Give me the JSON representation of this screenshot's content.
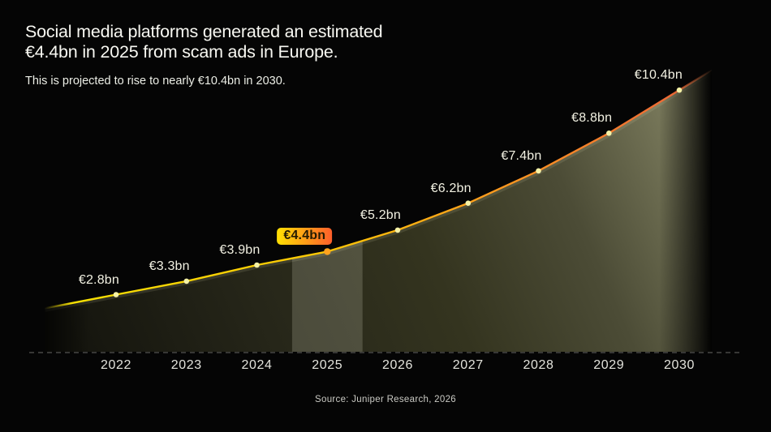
{
  "header": {
    "title_line1": "Social media platforms generated an estimated",
    "title_line2": "€4.4bn in 2025 from scam ads in Europe.",
    "subtitle": "This is projected to rise to nearly €10.4bn in 2030."
  },
  "source": {
    "label": "Source: Juniper Research, 2026"
  },
  "chart_data": {
    "type": "area",
    "title": "Social media platforms generated an estimated €4.4bn in 2025 from scam ads in Europe.",
    "subtitle": "This is projected to rise to nearly €10.4bn in 2030.",
    "x": [
      2022,
      2023,
      2024,
      2025,
      2026,
      2027,
      2028,
      2029,
      2030
    ],
    "values": [
      2.8,
      3.3,
      3.9,
      4.4,
      5.2,
      6.2,
      7.4,
      8.8,
      10.4
    ],
    "value_labels": [
      "€2.8bn",
      "€3.3bn",
      "€3.9bn",
      "€4.4bn",
      "€5.2bn",
      "€6.2bn",
      "€7.4bn",
      "€8.8bn",
      "€10.4bn"
    ],
    "unit": "EUR billions",
    "highlight": {
      "year": 2025,
      "label": "€4.4bn"
    },
    "xlabel": "",
    "ylabel": "",
    "ylim": [
      0,
      11
    ],
    "grid": false,
    "legend": false,
    "colors": {
      "background": "#050505",
      "line_gradient": [
        "#f6e003",
        "#fdc805",
        "#ff9d1d",
        "#ee6a35"
      ],
      "point": "#f6f2a6",
      "highlight_point": "#ffa21f",
      "badge_gradient": [
        "#ffe003",
        "#ff5f2b"
      ],
      "badge_text": "#241b02",
      "area_gradient": [
        "#15150e",
        "#262619",
        "#34341f",
        "#4c4c36",
        "#7f7f60"
      ],
      "axis_dash": "#90908a",
      "label_text": "#f2f1e2"
    }
  }
}
